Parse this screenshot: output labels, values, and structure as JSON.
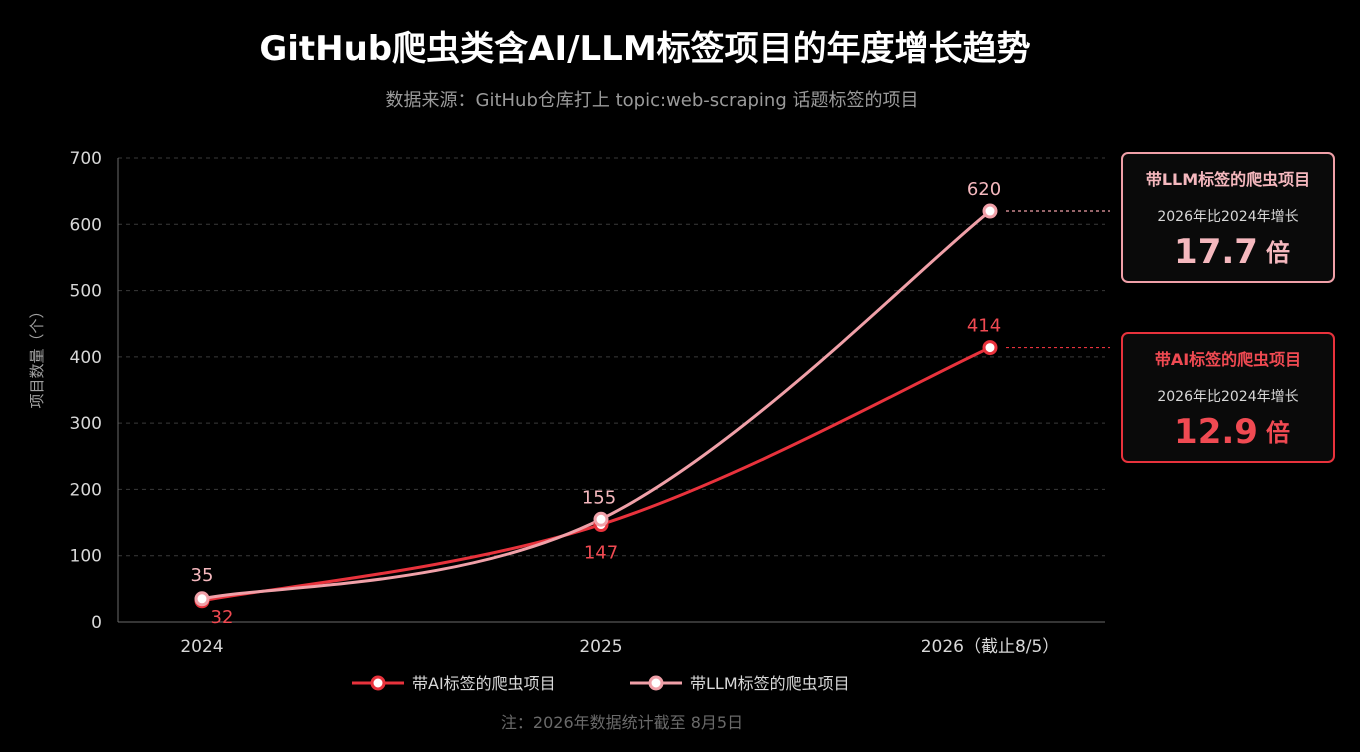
{
  "chart_data": {
    "type": "line",
    "title": "GitHub爬虫类含AI/LLM标签项目的年度增长趋势",
    "subtitle": "数据来源：GitHub仓库打上 topic:web-scraping 话题标签的项目",
    "ylabel": "项目数量（个）",
    "xlabel": "",
    "categories": [
      "2024",
      "2025",
      "2026（截止8/5）"
    ],
    "ylim": [
      0,
      700
    ],
    "yticks": [
      0,
      100,
      200,
      300,
      400,
      500,
      600,
      700
    ],
    "grid": true,
    "legend_position": "bottom",
    "series": [
      {
        "name": "带AI标签的爬虫项目",
        "values": [
          32,
          147,
          414
        ],
        "color": "#e8323c"
      },
      {
        "name": "带LLM标签的爬虫项目",
        "values": [
          35,
          155,
          620
        ],
        "color": "#f0a0a8"
      }
    ],
    "annotations": [
      {
        "title": "带LLM标签的爬虫项目",
        "subtitle": "2026年比2024年增长",
        "multiplier": "17.7",
        "unit": "倍",
        "color": "#f0a0a8",
        "text_color": "#f5b8be"
      },
      {
        "title": "带AI标签的爬虫项目",
        "subtitle": "2026年比2024年增长",
        "multiplier": "12.9",
        "unit": "倍",
        "color": "#e8323c",
        "text_color": "#f04a52"
      }
    ],
    "note": "注：2026年数据统计截至 8月5日"
  }
}
